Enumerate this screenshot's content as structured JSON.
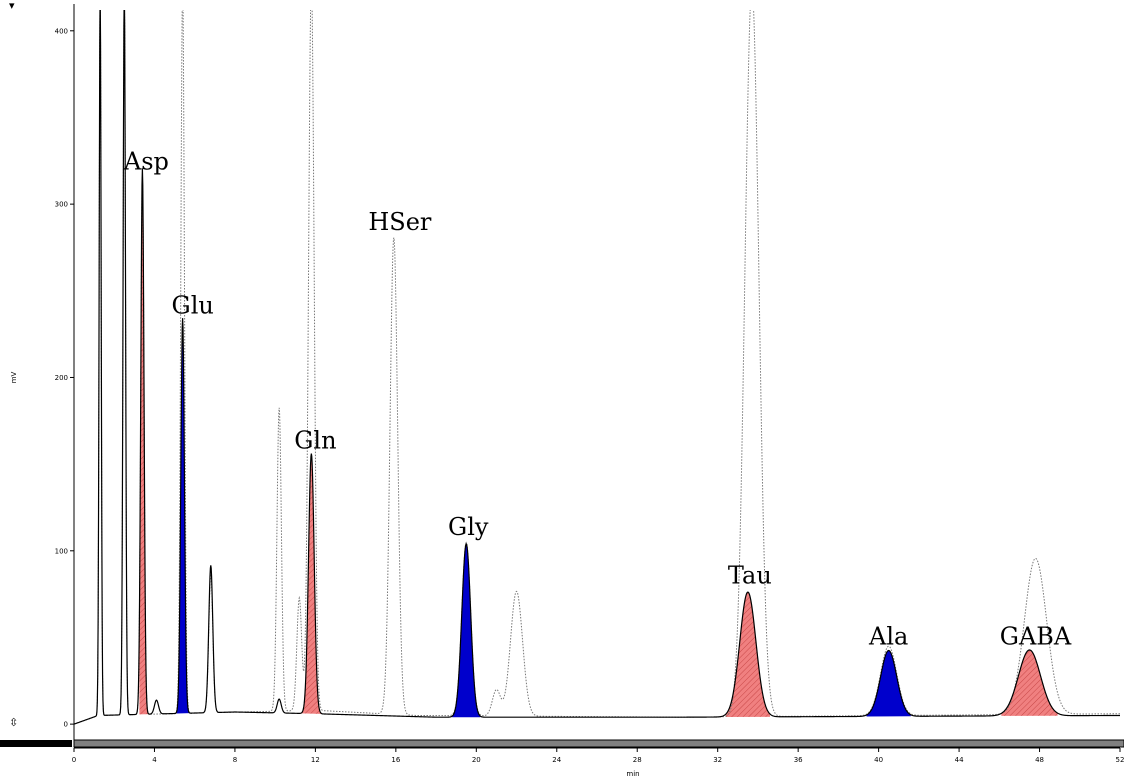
{
  "controls": {
    "dropdown_glyph": "▾",
    "scroll_glyph": "⇳"
  },
  "chart_data": {
    "type": "line",
    "xlabel": "min",
    "ylabel": "mV",
    "xlim": [
      0,
      52
    ],
    "ylim": [
      -8,
      412
    ],
    "x_ticks": [
      0,
      4,
      8,
      12,
      16,
      20,
      24,
      28,
      32,
      36,
      40,
      44,
      48,
      52
    ],
    "y_ticks": [
      0,
      100,
      200,
      300,
      400
    ],
    "colors": {
      "red_fill": "#f08080",
      "blue_fill": "#0000cc",
      "sample_line": "#000000",
      "standard_line": "#777777"
    },
    "series": [
      {
        "style": "dotted",
        "baseline": [
          [
            0,
            0
          ],
          [
            1.2,
            5
          ],
          [
            12,
            8
          ],
          [
            17,
            5
          ],
          [
            30,
            4
          ],
          [
            52,
            6
          ]
        ],
        "peaks": [
          {
            "rt": 1.3,
            "height": 420,
            "sigma": 0.05
          },
          {
            "rt": 2.5,
            "height": 420,
            "sigma": 0.06
          },
          {
            "rt": 3.4,
            "height": 310,
            "sigma": 0.08
          },
          {
            "rt": 5.4,
            "height": 420,
            "sigma": 0.09
          },
          {
            "rt": 6.8,
            "height": 80,
            "sigma": 0.1
          },
          {
            "rt": 10.2,
            "height": 175,
            "sigma": 0.11
          },
          {
            "rt": 11.2,
            "height": 65,
            "sigma": 0.12
          },
          {
            "rt": 11.8,
            "height": 420,
            "sigma": 0.14
          },
          {
            "rt": 15.9,
            "height": 275,
            "sigma": 0.19
          },
          {
            "rt": 19.5,
            "height": 100,
            "sigma": 0.22
          },
          {
            "rt": 21.0,
            "height": 15,
            "sigma": 0.2
          },
          {
            "rt": 22.0,
            "height": 72,
            "sigma": 0.3
          },
          {
            "rt": 33.7,
            "height": 420,
            "sigma": 0.35
          },
          {
            "rt": 40.5,
            "height": 40,
            "sigma": 0.4
          },
          {
            "rt": 47.8,
            "height": 90,
            "sigma": 0.55
          }
        ]
      },
      {
        "style": "solid",
        "baseline": [
          [
            0,
            0
          ],
          [
            1.2,
            5
          ],
          [
            8,
            7
          ],
          [
            12,
            6
          ],
          [
            18,
            4
          ],
          [
            30,
            4
          ],
          [
            52,
            5
          ]
        ],
        "peaks": [
          {
            "rt": 1.3,
            "height": 420,
            "sigma": 0.05
          },
          {
            "rt": 2.5,
            "height": 420,
            "sigma": 0.06
          },
          {
            "rt": 3.4,
            "height": 315,
            "sigma": 0.08
          },
          {
            "rt": 4.1,
            "height": 8,
            "sigma": 0.1
          },
          {
            "rt": 5.4,
            "height": 228,
            "sigma": 0.09
          },
          {
            "rt": 6.8,
            "height": 85,
            "sigma": 0.1
          },
          {
            "rt": 10.2,
            "height": 8,
            "sigma": 0.1
          },
          {
            "rt": 11.8,
            "height": 150,
            "sigma": 0.14
          },
          {
            "rt": 19.5,
            "height": 100,
            "sigma": 0.22
          },
          {
            "rt": 33.5,
            "height": 72,
            "sigma": 0.4
          },
          {
            "rt": 40.5,
            "height": 38,
            "sigma": 0.4
          },
          {
            "rt": 47.5,
            "height": 38,
            "sigma": 0.55
          }
        ]
      }
    ],
    "filled_peaks": [
      {
        "name": "Asp",
        "rt": 3.4,
        "height": 315,
        "from": 3.25,
        "to": 3.85,
        "color": "red_fill",
        "label_x": 3.6,
        "label_y": 320
      },
      {
        "name": "Glu",
        "rt": 5.4,
        "height": 228,
        "from": 5.1,
        "to": 5.75,
        "color": "blue_fill",
        "label_x": 5.9,
        "label_y": 237
      },
      {
        "name": "Gln",
        "rt": 11.8,
        "height": 150,
        "from": 11.3,
        "to": 12.4,
        "color": "red_fill",
        "label_x": 12.0,
        "label_y": 159
      },
      {
        "name": "Gly",
        "rt": 19.5,
        "height": 100,
        "from": 18.8,
        "to": 20.2,
        "color": "blue_fill",
        "label_x": 19.6,
        "label_y": 109
      },
      {
        "name": "Tau",
        "rt": 33.5,
        "height": 72,
        "from": 32.4,
        "to": 34.6,
        "color": "red_fill",
        "label_x": 33.6,
        "label_y": 81
      },
      {
        "name": "Ala",
        "rt": 40.5,
        "height": 38,
        "from": 39.4,
        "to": 41.6,
        "color": "blue_fill",
        "label_x": 40.5,
        "label_y": 46
      },
      {
        "name": "GABA",
        "rt": 47.5,
        "height": 38,
        "from": 46.1,
        "to": 48.9,
        "color": "red_fill",
        "label_x": 47.8,
        "label_y": 46
      }
    ],
    "annotations": [
      {
        "text": "HSer",
        "x": 16.2,
        "y": 285
      }
    ]
  }
}
